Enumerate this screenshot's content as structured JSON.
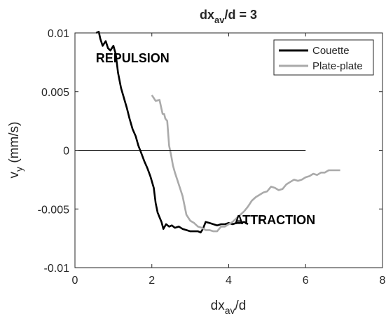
{
  "chart_data": {
    "type": "line",
    "title": {
      "main": "dx",
      "sub": "av",
      "tail": "/d = 3"
    },
    "xlabel": {
      "main": "dx",
      "sub": "av",
      "tail": "/d"
    },
    "ylabel": {
      "main": "v",
      "sub": "y",
      "tail": " (mm/s)"
    },
    "xlim": [
      0,
      8
    ],
    "ylim": [
      -0.01,
      0.01
    ],
    "xticks": [
      0,
      2,
      4,
      6,
      8
    ],
    "xtick_labels": [
      "0",
      "2",
      "4",
      "6",
      "8"
    ],
    "yticks": [
      -0.01,
      -0.005,
      0,
      0.005,
      0.01
    ],
    "ytick_labels": [
      "-0.01",
      "-0.005",
      "0",
      "0.005",
      "0.01"
    ],
    "grid": false,
    "legend_position": "top-right",
    "zero_line": {
      "y": 0,
      "x": [
        0,
        6
      ],
      "color": "#000000"
    },
    "annotations": [
      {
        "text": "REPULSION",
        "x": 1.5,
        "y": 0.0075
      },
      {
        "text": "ATTRACTION",
        "x": 5.2,
        "y": -0.0063
      }
    ],
    "series": [
      {
        "name": "Couette",
        "color": "#000000",
        "x": [
          0.55,
          0.62,
          0.66,
          0.72,
          0.8,
          0.86,
          0.92,
          1.0,
          1.06,
          1.12,
          1.2,
          1.27,
          1.35,
          1.42,
          1.5,
          1.58,
          1.65,
          1.72,
          1.8,
          1.88,
          1.96,
          2.05,
          2.1,
          2.15,
          2.2,
          2.25,
          2.3,
          2.37,
          2.45,
          2.52,
          2.6,
          2.7,
          2.8,
          2.9,
          3.0,
          3.1,
          3.2,
          3.27,
          3.33,
          3.4,
          3.5,
          3.6,
          3.7,
          3.8,
          3.9,
          4.0,
          4.1,
          4.2,
          4.3,
          4.4,
          4.5
        ],
        "y": [
          0.01,
          0.0101,
          0.0095,
          0.0089,
          0.0093,
          0.0087,
          0.0085,
          0.0089,
          0.0082,
          0.0066,
          0.0053,
          0.0045,
          0.0036,
          0.0027,
          0.0018,
          0.0012,
          0.0004,
          -0.0002,
          -0.0009,
          -0.0015,
          -0.0022,
          -0.0032,
          -0.0045,
          -0.0053,
          -0.0057,
          -0.0061,
          -0.0067,
          -0.0063,
          -0.0065,
          -0.0064,
          -0.0066,
          -0.0065,
          -0.0067,
          -0.0068,
          -0.0069,
          -0.0069,
          -0.0069,
          -0.007,
          -0.0067,
          -0.0061,
          -0.0062,
          -0.0063,
          -0.0064,
          -0.0063,
          -0.0063,
          -0.0062,
          -0.0063,
          -0.0062,
          -0.0062,
          -0.0061,
          -0.0063
        ]
      },
      {
        "name": "Plate-plate",
        "color": "#aaaaaa",
        "x": [
          2.0,
          2.1,
          2.2,
          2.28,
          2.32,
          2.35,
          2.4,
          2.45,
          2.5,
          2.55,
          2.6,
          2.7,
          2.8,
          2.9,
          3.0,
          3.1,
          3.2,
          3.3,
          3.4,
          3.5,
          3.6,
          3.7,
          3.8,
          3.9,
          4.0,
          4.1,
          4.2,
          4.3,
          4.4,
          4.5,
          4.6,
          4.7,
          4.8,
          4.9,
          5.0,
          5.1,
          5.2,
          5.3,
          5.4,
          5.5,
          5.6,
          5.7,
          5.8,
          5.9,
          6.0,
          6.1,
          6.2,
          6.3,
          6.4,
          6.5,
          6.6,
          6.7,
          6.8,
          6.9
        ],
        "y": [
          0.0047,
          0.0042,
          0.0043,
          0.0031,
          0.0031,
          0.0027,
          0.0025,
          0.0004,
          -0.0004,
          -0.0013,
          -0.0019,
          -0.0029,
          -0.0039,
          -0.0055,
          -0.006,
          -0.0062,
          -0.0065,
          -0.0066,
          -0.0068,
          -0.0068,
          -0.0069,
          -0.0069,
          -0.0065,
          -0.0065,
          -0.0063,
          -0.0061,
          -0.0058,
          -0.0055,
          -0.0052,
          -0.0048,
          -0.0043,
          -0.004,
          -0.0038,
          -0.0036,
          -0.0035,
          -0.0031,
          -0.0032,
          -0.0034,
          -0.0033,
          -0.0029,
          -0.0027,
          -0.0025,
          -0.0026,
          -0.0025,
          -0.0023,
          -0.0022,
          -0.002,
          -0.0021,
          -0.0019,
          -0.0019,
          -0.0017,
          -0.0017,
          -0.0017,
          -0.0017
        ]
      }
    ]
  }
}
